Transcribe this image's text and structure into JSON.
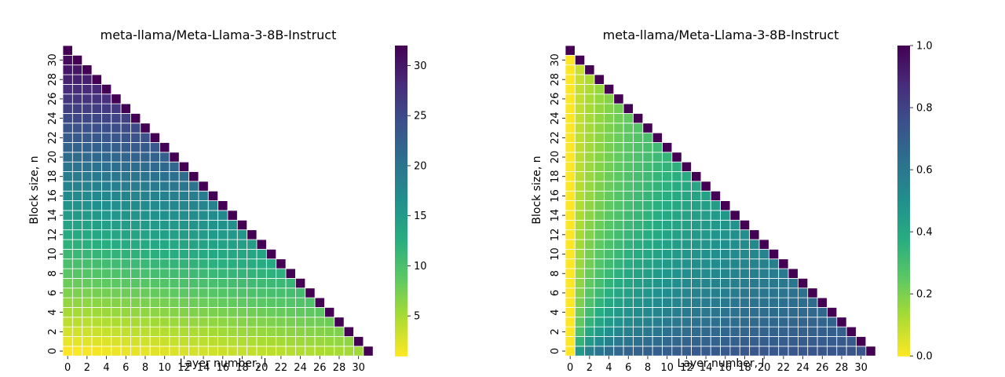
{
  "chart_data": [
    {
      "type": "heatmap",
      "title": "meta-llama/Meta-Llama-3-8B-Instruct",
      "xlabel": "Layer number, l",
      "ylabel": "Block size, n",
      "x_ticks": [
        "0",
        "2",
        "4",
        "6",
        "8",
        "10",
        "12",
        "14",
        "16",
        "18",
        "20",
        "22",
        "24",
        "26",
        "28",
        "30"
      ],
      "y_ticks": [
        "0",
        "2",
        "4",
        "6",
        "8",
        "10",
        "12",
        "14",
        "16",
        "18",
        "20",
        "22",
        "24",
        "26",
        "28",
        "30"
      ],
      "n_layers": 32,
      "mask": "upper-triangle (cells with l + n >= 32 are empty)",
      "colormap": "viridis_r",
      "vmin": 1,
      "vmax": 32,
      "colorbar_ticks": [
        "5",
        "10",
        "15",
        "20",
        "25",
        "30"
      ],
      "colorbar_tick_values": [
        5,
        10,
        15,
        20,
        25,
        30
      ],
      "value_model": "value(l, n) ≈ 1 + n + 4.5*l/31, top cell of each column clamped to vmax"
    },
    {
      "type": "heatmap",
      "title": "meta-llama/Meta-Llama-3-8B-Instruct",
      "xlabel": "Layer number, l",
      "ylabel": "Block size, n",
      "x_ticks": [
        "0",
        "2",
        "4",
        "6",
        "8",
        "10",
        "12",
        "14",
        "16",
        "18",
        "20",
        "22",
        "24",
        "26",
        "28",
        "30"
      ],
      "y_ticks": [
        "0",
        "2",
        "4",
        "6",
        "8",
        "10",
        "12",
        "14",
        "16",
        "18",
        "20",
        "22",
        "24",
        "26",
        "28",
        "30"
      ],
      "n_layers": 32,
      "mask": "upper-triangle (cells with l + n >= 32 are empty)",
      "colormap": "viridis_r",
      "vmin": 0.0,
      "vmax": 1.0,
      "colorbar_ticks": [
        "0.0",
        "0.2",
        "0.4",
        "0.6",
        "0.8",
        "1.0"
      ],
      "colorbar_tick_values": [
        0.0,
        0.2,
        0.4,
        0.6,
        0.8,
        1.0
      ],
      "value_model": "value(l, n) ≈ l/(l+n+1) blended toward ~0.7, column l=0 ≈ 0, diagonal = 1.0"
    }
  ]
}
